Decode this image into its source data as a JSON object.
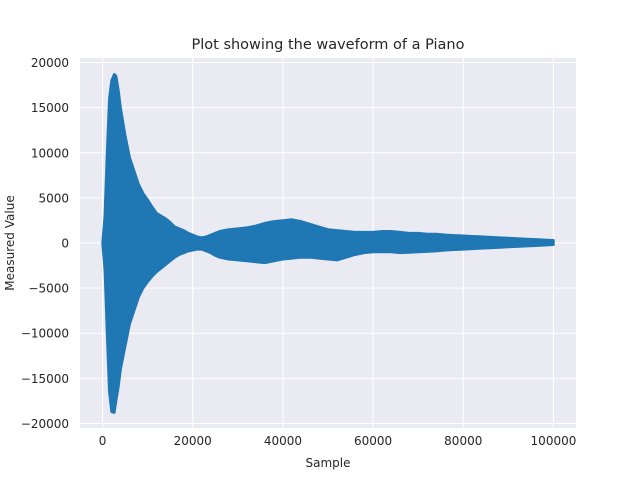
{
  "chart_data": {
    "type": "area",
    "title": "Plot showing the waveform of a Piano",
    "xlabel": "Sample",
    "ylabel": "Measured Value",
    "xlim": [
      -5000,
      105000
    ],
    "ylim": [
      -20500,
      20500
    ],
    "xticks": [
      0,
      20000,
      40000,
      60000,
      80000,
      100000
    ],
    "xtick_labels": [
      "0",
      "20000",
      "40000",
      "60000",
      "80000",
      "100000"
    ],
    "yticks": [
      20000,
      15000,
      10000,
      5000,
      0,
      -5000,
      -10000,
      -15000,
      -20000
    ],
    "ytick_labels": [
      "20000",
      "15000",
      "10000",
      "5000",
      "0",
      "−5000",
      "−10000",
      "−15000",
      "−20000"
    ],
    "grid": true,
    "series": [
      {
        "color": "#1f77b4",
        "envelope": {
          "x": [
            0,
            500,
            1000,
            1500,
            2000,
            2600,
            3000,
            3500,
            4000,
            5000,
            6000,
            7000,
            8000,
            9000,
            10000,
            11000,
            12000,
            13000,
            14000,
            15000,
            16000,
            17000,
            18000,
            19000,
            20000,
            21000,
            22000,
            23000,
            24000,
            25000,
            26000,
            27000,
            28000,
            30000,
            32000,
            34000,
            36000,
            38000,
            40000,
            42000,
            44000,
            46000,
            48000,
            50000,
            52000,
            54000,
            56000,
            58000,
            60000,
            62000,
            64000,
            66000,
            68000,
            70000,
            72000,
            74000,
            76000,
            78000,
            80000,
            82000,
            84000,
            86000,
            88000,
            90000,
            92000,
            94000,
            96000,
            98000,
            100000
          ],
          "upper": [
            0,
            3000,
            10000,
            16000,
            18000,
            18700,
            18500,
            17000,
            15000,
            12000,
            9500,
            8000,
            6500,
            5500,
            4800,
            4000,
            3300,
            3000,
            2700,
            2300,
            1800,
            1600,
            1400,
            1100,
            900,
            700,
            600,
            700,
            900,
            1100,
            1300,
            1400,
            1500,
            1600,
            1700,
            1900,
            2200,
            2400,
            2500,
            2600,
            2400,
            2100,
            1800,
            1500,
            1400,
            1300,
            1200,
            1200,
            1200,
            1300,
            1300,
            1200,
            1100,
            1100,
            1000,
            1000,
            900,
            850,
            800,
            750,
            700,
            650,
            600,
            550,
            500,
            450,
            400,
            350,
            300
          ],
          "lower": [
            0,
            -3000,
            -10000,
            -16500,
            -18700,
            -18800,
            -17500,
            -16000,
            -14000,
            -11500,
            -9000,
            -7500,
            -6000,
            -5000,
            -4300,
            -3700,
            -3200,
            -2800,
            -2400,
            -2000,
            -1600,
            -1300,
            -1100,
            -900,
            -800,
            -700,
            -700,
            -900,
            -1100,
            -1400,
            -1600,
            -1700,
            -1800,
            -1900,
            -2000,
            -2100,
            -2200,
            -2000,
            -1800,
            -1700,
            -1600,
            -1600,
            -1700,
            -1800,
            -1900,
            -1600,
            -1300,
            -1100,
            -1000,
            -1000,
            -1000,
            -1100,
            -1050,
            -1000,
            -950,
            -900,
            -800,
            -750,
            -700,
            -650,
            -600,
            -550,
            -500,
            -450,
            -400,
            -350,
            -300,
            -250,
            -200
          ]
        }
      }
    ]
  }
}
